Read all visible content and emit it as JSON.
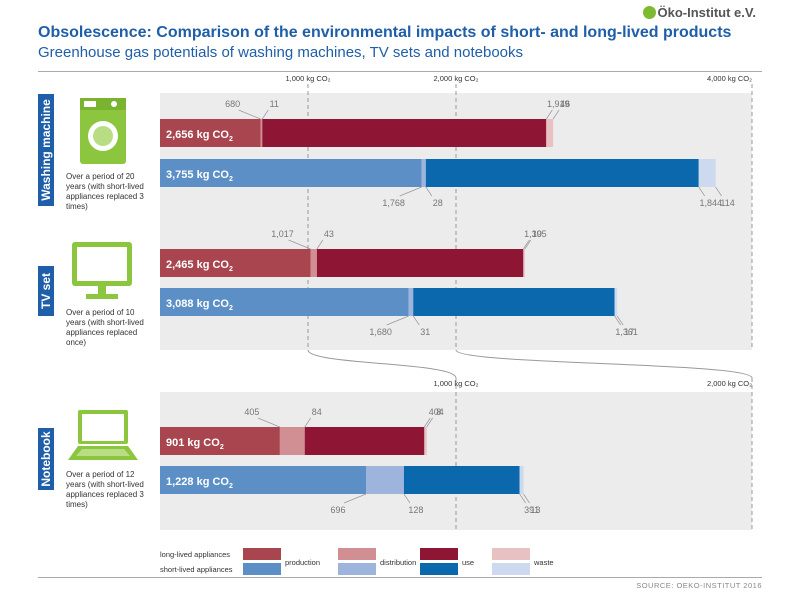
{
  "title": "Obsolescence: Comparison of the environmental impacts of short- and long-lived products",
  "subtitle": "Greenhouse gas potentials of washing machines, TV sets and notebooks",
  "logo": "Öko-Institut e.V.",
  "source": "SOURCE: OEKO-INSTITUT 2016",
  "colors": {
    "long": [
      "#a8454e",
      "#d18f93",
      "#8e1533",
      "#e8c2c3"
    ],
    "short": [
      "#5b8fc6",
      "#9db5dc",
      "#0c68ac",
      "#ccd9ee"
    ],
    "panel": "#ececec",
    "brand": "#1f5ea8"
  },
  "legend": {
    "long_label": "long-lived appliances",
    "short_label": "short-lived appliances",
    "phases": [
      "production",
      "distribution",
      "use",
      "waste"
    ]
  },
  "scale_labels": {
    "top": [
      "1,000 kg CO₂",
      "2,000 kg CO₂",
      "4,000 kg CO₂"
    ],
    "lower": [
      "1,000 kg CO₂",
      "2,000 kg CO₂"
    ]
  },
  "chart_data": [
    {
      "type": "bar",
      "product": "Washing machine",
      "icon": "washing-machine-icon",
      "note": "Over a period of 20 years (with short-lived appliances replaced 3 times)",
      "categories": [
        "production",
        "distribution",
        "use",
        "waste"
      ],
      "series": [
        {
          "name": "long-lived",
          "total_label": "2,656 kg CO₂",
          "values": [
            680,
            11,
            1919,
            46
          ],
          "labels": [
            "680",
            "11",
            "1,919",
            "46"
          ]
        },
        {
          "name": "short-lived",
          "total_label": "3,755 kg CO₂",
          "values": [
            1768,
            28,
            1844,
            114
          ],
          "labels": [
            "1,768",
            "28",
            "1,844",
            "114"
          ]
        }
      ],
      "xlim": [
        0,
        4000
      ]
    },
    {
      "type": "bar",
      "product": "TV set",
      "icon": "tv-icon",
      "note": "Over a period of 10 years (with short-lived appliances replaced once)",
      "categories": [
        "production",
        "distribution",
        "use",
        "waste"
      ],
      "series": [
        {
          "name": "long-lived",
          "total_label": "2,465 kg CO₂",
          "values": [
            1017,
            43,
            1395,
            10
          ],
          "labels": [
            "1,017",
            "43",
            "1,395",
            "10"
          ]
        },
        {
          "name": "short-lived",
          "total_label": "3,088 kg CO₂",
          "values": [
            1680,
            31,
            1361,
            17
          ],
          "labels": [
            "1,680",
            "31",
            "1,361",
            "17"
          ]
        }
      ],
      "xlim": [
        0,
        4000
      ]
    },
    {
      "type": "bar",
      "product": "Notebook",
      "icon": "notebook-icon",
      "note": "Over a period of 12 years (with short-lived appliances replaced 3 times)",
      "categories": [
        "production",
        "distribution",
        "use",
        "waste"
      ],
      "series": [
        {
          "name": "long-lived",
          "total_label": "901 kg CO₂",
          "values": [
            405,
            84,
            404,
            8
          ],
          "labels": [
            "405",
            "84",
            "404",
            "8"
          ]
        },
        {
          "name": "short-lived",
          "total_label": "1,228 kg CO₂",
          "values": [
            696,
            128,
            391,
            13
          ],
          "labels": [
            "696",
            "128",
            "391",
            "13"
          ]
        }
      ],
      "xlim": [
        0,
        2000
      ]
    }
  ]
}
